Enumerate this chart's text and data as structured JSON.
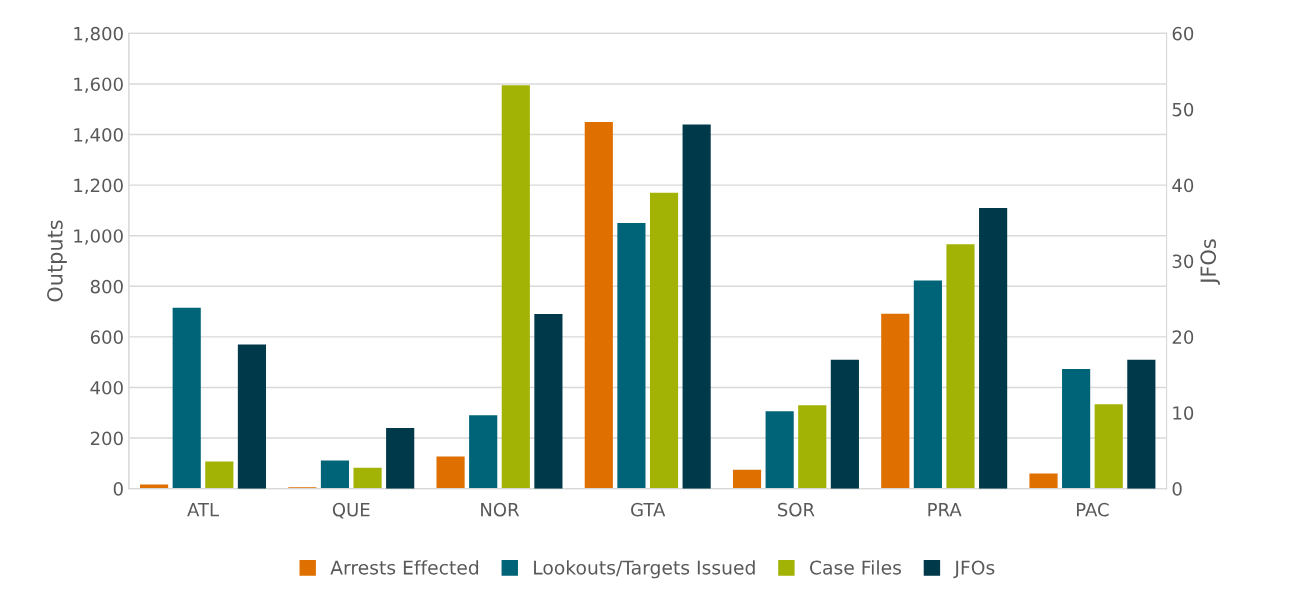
{
  "chart_data": {
    "type": "bar",
    "categories": [
      "ATL",
      "QUE",
      "NOR",
      "GTA",
      "SOR",
      "PRA",
      "PAC"
    ],
    "ylabel": "Outputs",
    "y2label": "JFOs",
    "ylim": [
      0,
      1800
    ],
    "yticks": [
      {
        "value": 0,
        "label": "0"
      },
      {
        "value": 200,
        "label": "200"
      },
      {
        "value": 400,
        "label": "400"
      },
      {
        "value": 600,
        "label": "600"
      },
      {
        "value": 800,
        "label": "800"
      },
      {
        "value": 1000,
        "label": "1,000"
      },
      {
        "value": 1200,
        "label": "1,200"
      },
      {
        "value": 1400,
        "label": "1,400"
      },
      {
        "value": 1600,
        "label": "1,600"
      },
      {
        "value": 1800,
        "label": "1,800"
      }
    ],
    "y2lim": [
      0,
      60
    ],
    "y2ticks": [
      0,
      10,
      20,
      30,
      40,
      50,
      60
    ],
    "grid": "y",
    "legend": "bottom",
    "series": [
      {
        "name": "Arrests Effected",
        "color": "#df7000",
        "values": [
          16,
          5,
          127,
          1450,
          75,
          691,
          60
        ]
      },
      {
        "name": "Lookouts/Targets Issued",
        "color": "#006478",
        "values": [
          715,
          111,
          290,
          1050,
          306,
          823,
          473
        ]
      },
      {
        "name": "Case Files",
        "color": "#a2b306",
        "values": [
          107,
          83,
          1595,
          1170,
          330,
          966,
          334
        ]
      },
      {
        "name": "JFOs",
        "color": "#003a4a",
        "axis": "y2",
        "values": [
          19,
          8,
          23,
          48,
          17,
          37,
          17
        ]
      }
    ]
  }
}
